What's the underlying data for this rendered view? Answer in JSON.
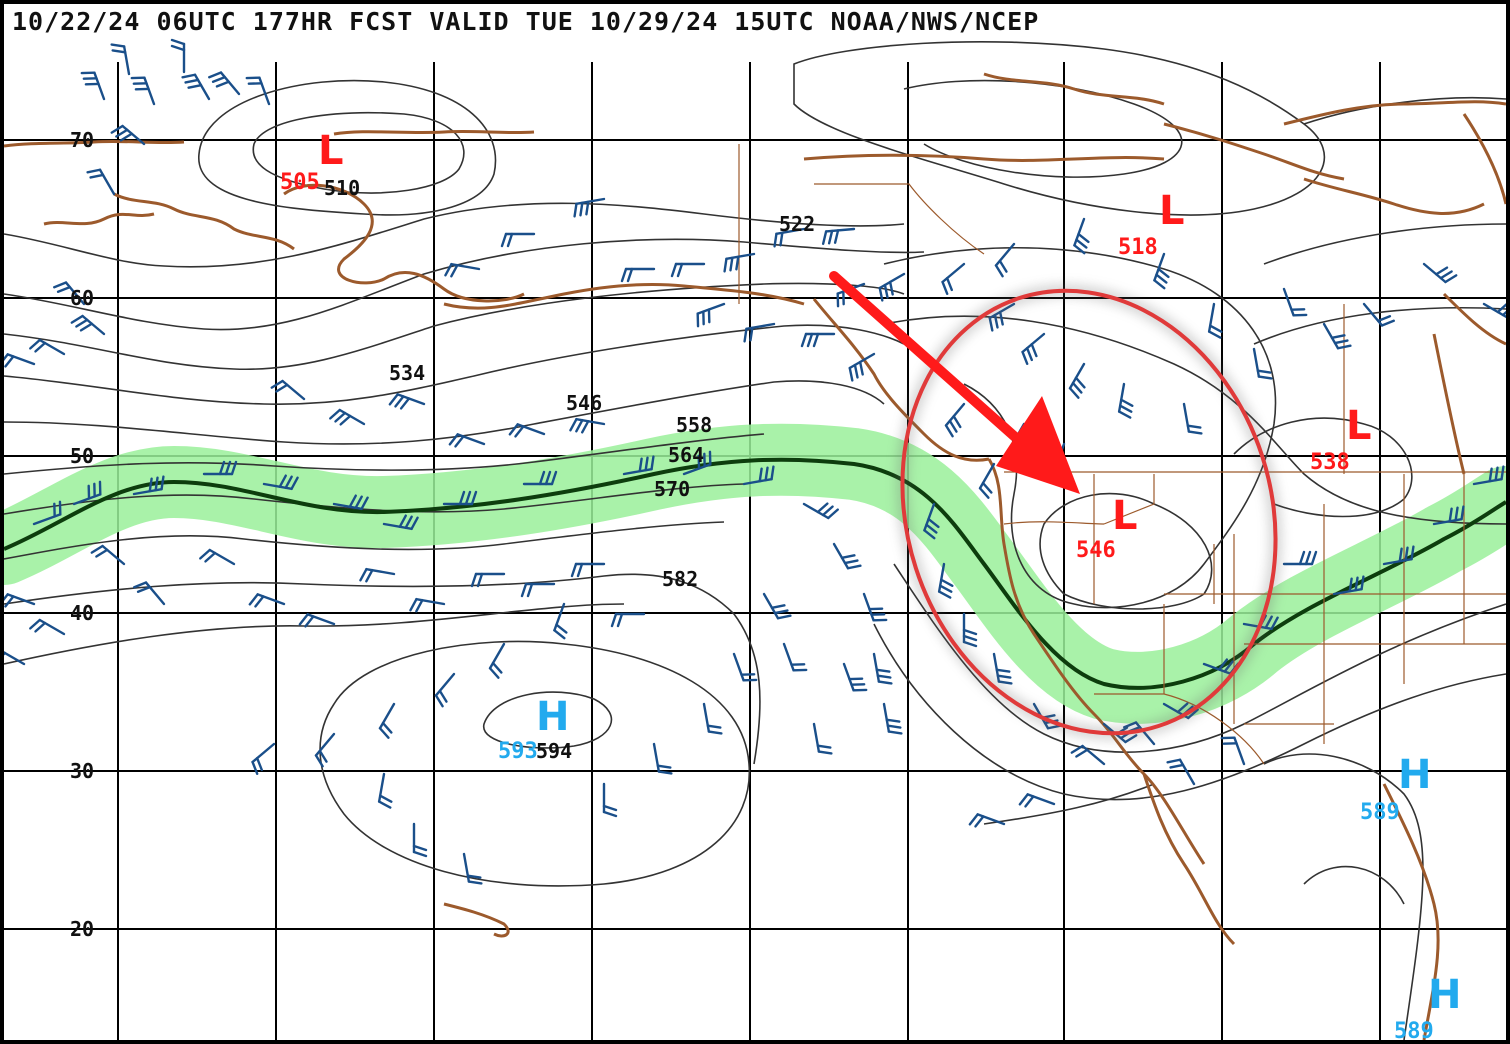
{
  "header": {
    "title": "10/22/24 06UTC 177HR FCST VALID TUE 10/29/24 15UTC NOAA/NWS/NCEP"
  },
  "colors": {
    "frame": "#000000",
    "grid": "#000000",
    "coast": "#9c5a2c",
    "contour": "#333333",
    "barb": "#1a4f8a",
    "jet_band": "#9af09a",
    "jet_line": "#0d3d0d",
    "low": "#ff1a1a",
    "high": "#22aaee",
    "annotation": "#e03a3a"
  },
  "latitude_labels": [
    "70",
    "60",
    "50",
    "40",
    "30",
    "20"
  ],
  "contour_labels": [
    "510",
    "522",
    "534",
    "546",
    "558",
    "564",
    "570",
    "582",
    "594"
  ],
  "lows": [
    {
      "letter": "L",
      "value": "505"
    },
    {
      "letter": "L",
      "value": "518"
    },
    {
      "letter": "L",
      "value": "538"
    },
    {
      "letter": "L",
      "value": "546"
    }
  ],
  "highs": [
    {
      "letter": "H",
      "value": "593"
    },
    {
      "letter": "H",
      "value": "589"
    },
    {
      "letter": "H",
      "value": "589"
    }
  ],
  "annotations": {
    "arrow": "red-arrow",
    "ellipse": "red-ellipse",
    "jet": "green-jet-stream"
  }
}
